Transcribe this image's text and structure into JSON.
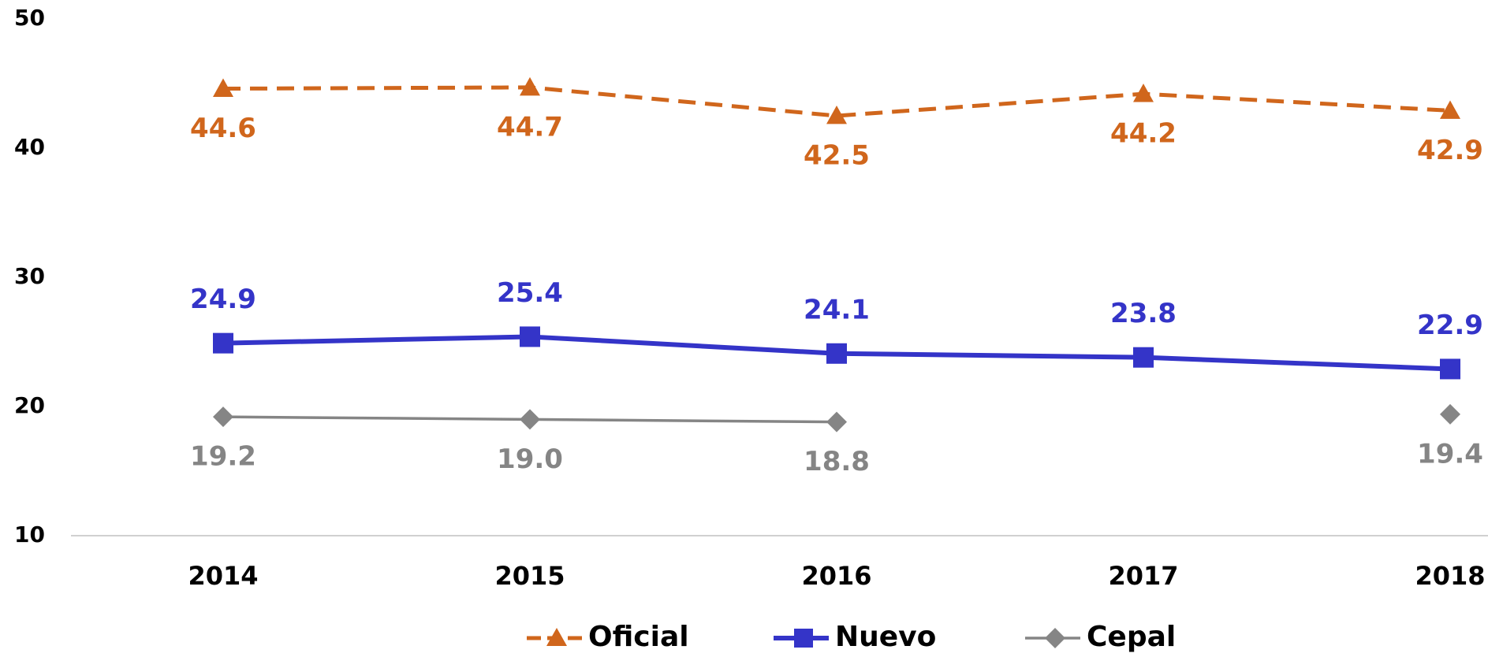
{
  "chart_data": {
    "type": "line",
    "categories": [
      "2014",
      "2015",
      "2016",
      "2017",
      "2018"
    ],
    "series": [
      {
        "name": "Oficial",
        "color": "#d0661c",
        "marker": "triangle",
        "dashed": true,
        "values": [
          44.6,
          44.7,
          42.5,
          44.2,
          42.9
        ],
        "label_position": "below"
      },
      {
        "name": "Nuevo",
        "color": "#3434c8",
        "marker": "square",
        "dashed": false,
        "values": [
          24.9,
          25.4,
          24.1,
          23.8,
          22.9
        ],
        "label_position": "above"
      },
      {
        "name": "Cepal",
        "color": "#858585",
        "marker": "diamond",
        "dashed": false,
        "values": [
          19.2,
          19.0,
          18.8,
          null,
          19.4
        ],
        "value_labels": [
          "19.2",
          "19.0",
          "18.8",
          null,
          "19.4"
        ],
        "label_position": "below"
      }
    ],
    "ylim": [
      10,
      50
    ],
    "yticks": [
      10,
      20,
      30,
      40,
      50
    ],
    "grid": false,
    "legend": "bottom"
  }
}
